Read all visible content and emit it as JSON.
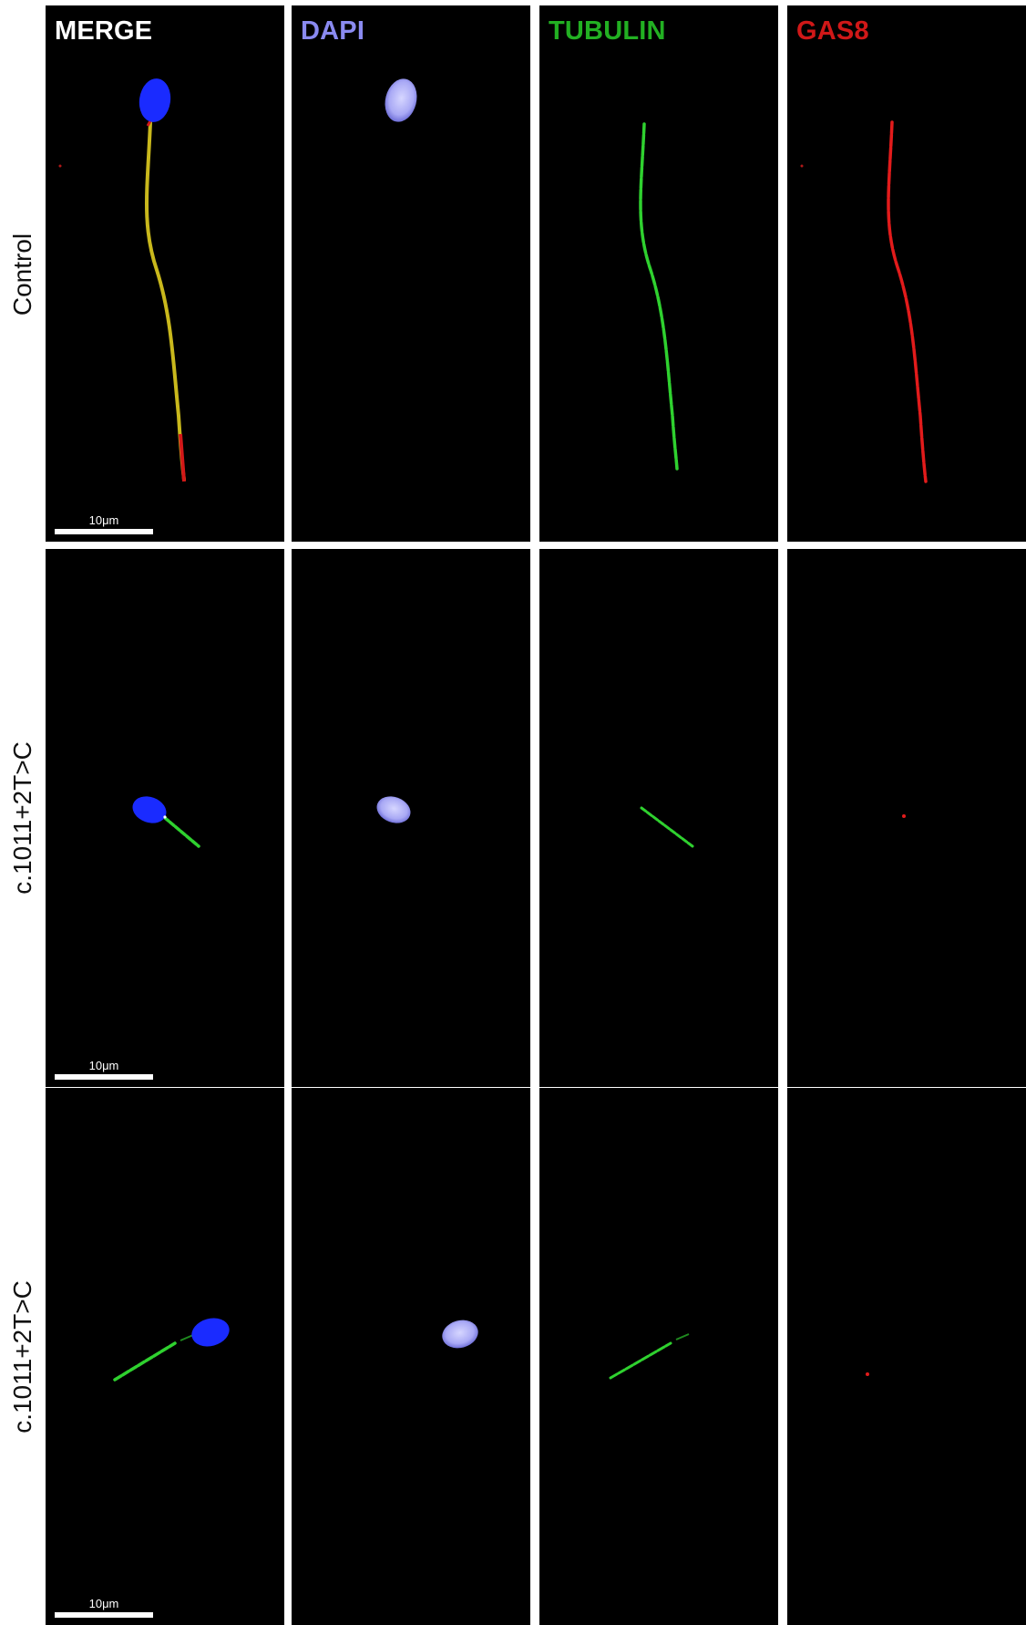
{
  "channels": [
    {
      "label": "MERGE",
      "color": "#ffffff"
    },
    {
      "label": "DAPI",
      "color": "#8a8af0"
    },
    {
      "label": "TUBULIN",
      "color": "#22b022"
    },
    {
      "label": "GAS8",
      "color": "#d01818"
    }
  ],
  "rows": [
    {
      "label": "Control",
      "scale_bar": "10μm"
    },
    {
      "label": "c.1011+2T>C",
      "scale_bar": "10μm"
    },
    {
      "label": "c.1011+2T>C",
      "scale_bar": "10μm"
    }
  ],
  "colors": {
    "background": "#000000",
    "dapi_merge": "#1a2bff",
    "dapi_single": "#b9b9ff",
    "tubulin": "#2fd12f",
    "gas8": "#e21b1b",
    "merge_overlap": "#d8c21a"
  }
}
